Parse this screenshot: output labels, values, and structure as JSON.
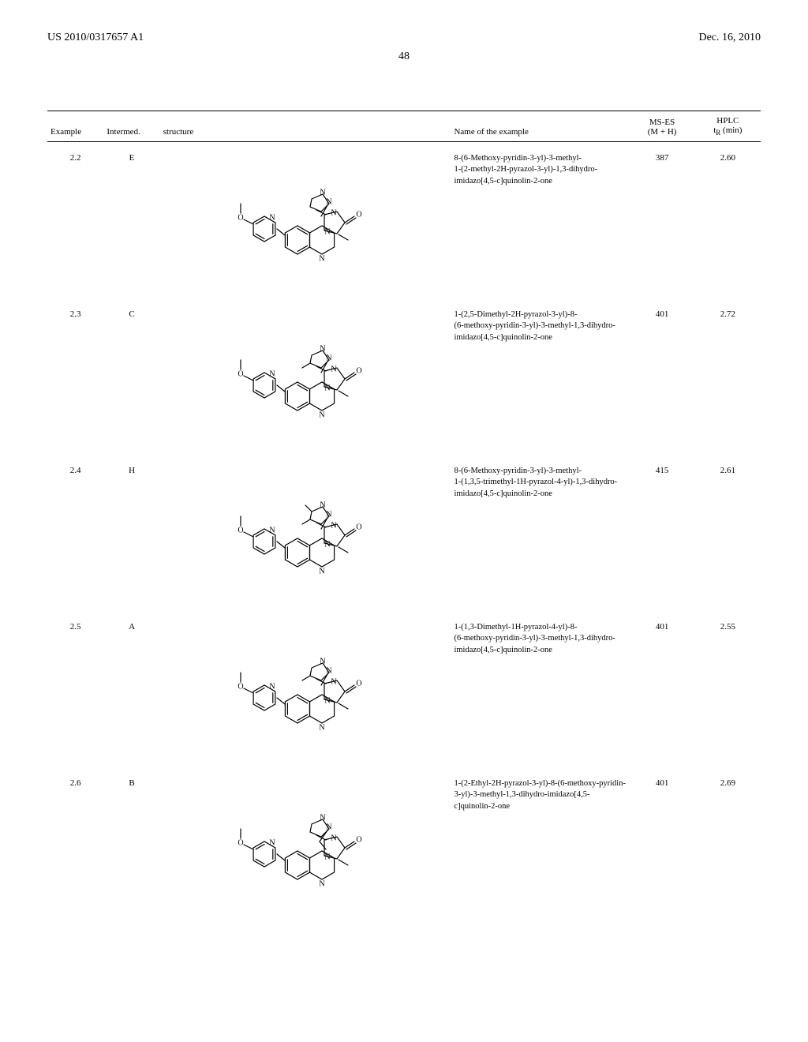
{
  "header": {
    "left": "US 2010/0317657 A1",
    "right": "Dec. 16, 2010"
  },
  "page_number": "48",
  "table": {
    "columns": {
      "example": "Example",
      "intermed": "Intermed.",
      "structure": "structure",
      "name": "Name of the example",
      "ms_es_top": "MS-ES",
      "ms_es_bottom": "(M + H)",
      "hplc_top": "HPLC",
      "hplc_bottom": "t",
      "hplc_bottom_sub": "R",
      "hplc_bottom_unit": " (min)"
    },
    "rows": [
      {
        "example": "2.2",
        "intermed": "E",
        "name": "8-(6-Methoxy-pyridin-3-yl)-3-methyl-\n1-(2-methyl-2H-pyrazol-3-yl)-1,3-dihydro-imidazo[4,5-c]quinolin-2-one",
        "ms": "387",
        "hplc": "2.60"
      },
      {
        "example": "2.3",
        "intermed": "C",
        "name": "1-(2,5-Dimethyl-2H-pyrazol-3-yl)-8-\n(6-methoxy-pyridin-3-yl)-3-methyl-1,3-dihydro-imidazo[4,5-c]quinolin-2-one",
        "ms": "401",
        "hplc": "2.72"
      },
      {
        "example": "2.4",
        "intermed": "H",
        "name": "8-(6-Methoxy-pyridin-3-yl)-3-methyl-\n1-(1,3,5-trimethyl-1H-pyrazol-4-yl)-1,3-dihydro-imidazo[4,5-c]quinolin-2-one",
        "ms": "415",
        "hplc": "2.61"
      },
      {
        "example": "2.5",
        "intermed": "A",
        "name": "1-(1,3-Dimethyl-1H-pyrazol-4-yl)-8-\n(6-methoxy-pyridin-3-yl)-3-methyl-1,3-dihydro-imidazo[4,5-c]quinolin-2-one",
        "ms": "401",
        "hplc": "2.55"
      },
      {
        "example": "2.6",
        "intermed": "B",
        "name": "1-(2-Ethyl-2H-pyrazol-3-yl)-8-(6-methoxy-pyridin-3-yl)-3-methyl-1,3-dihydro-imidazo[4,5-c]quinolin-2-one",
        "ms": "401",
        "hplc": "2.69"
      }
    ]
  }
}
